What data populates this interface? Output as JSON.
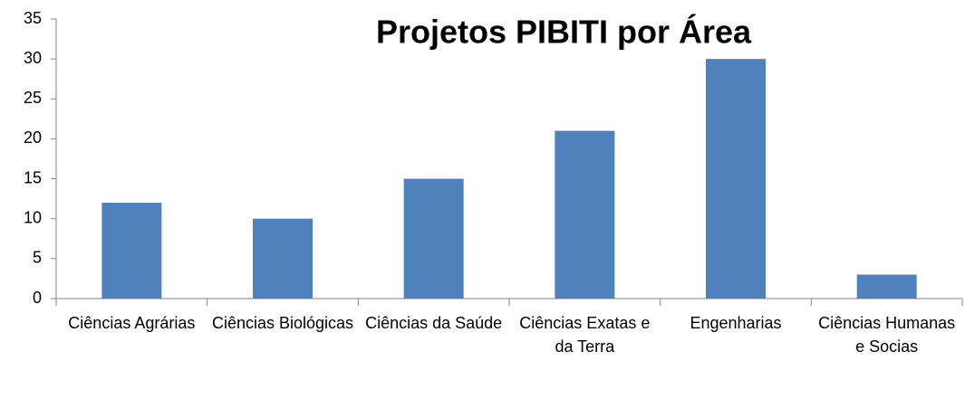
{
  "chart_data": {
    "type": "bar",
    "title": "Projetos PIBITI por Área",
    "categories": [
      "Ciências Agrárias",
      "Ciências Biológicas",
      "Ciências da Saúde",
      "Ciências Exatas e da Terra",
      "Engenharias",
      "Ciências Humanas e Socias"
    ],
    "values": [
      12,
      10,
      15,
      21,
      30,
      3
    ],
    "color": "#4f81bd",
    "ylim": [
      0,
      35
    ],
    "yticks": [
      0,
      5,
      10,
      15,
      20,
      25,
      30,
      35
    ],
    "grid": false
  }
}
